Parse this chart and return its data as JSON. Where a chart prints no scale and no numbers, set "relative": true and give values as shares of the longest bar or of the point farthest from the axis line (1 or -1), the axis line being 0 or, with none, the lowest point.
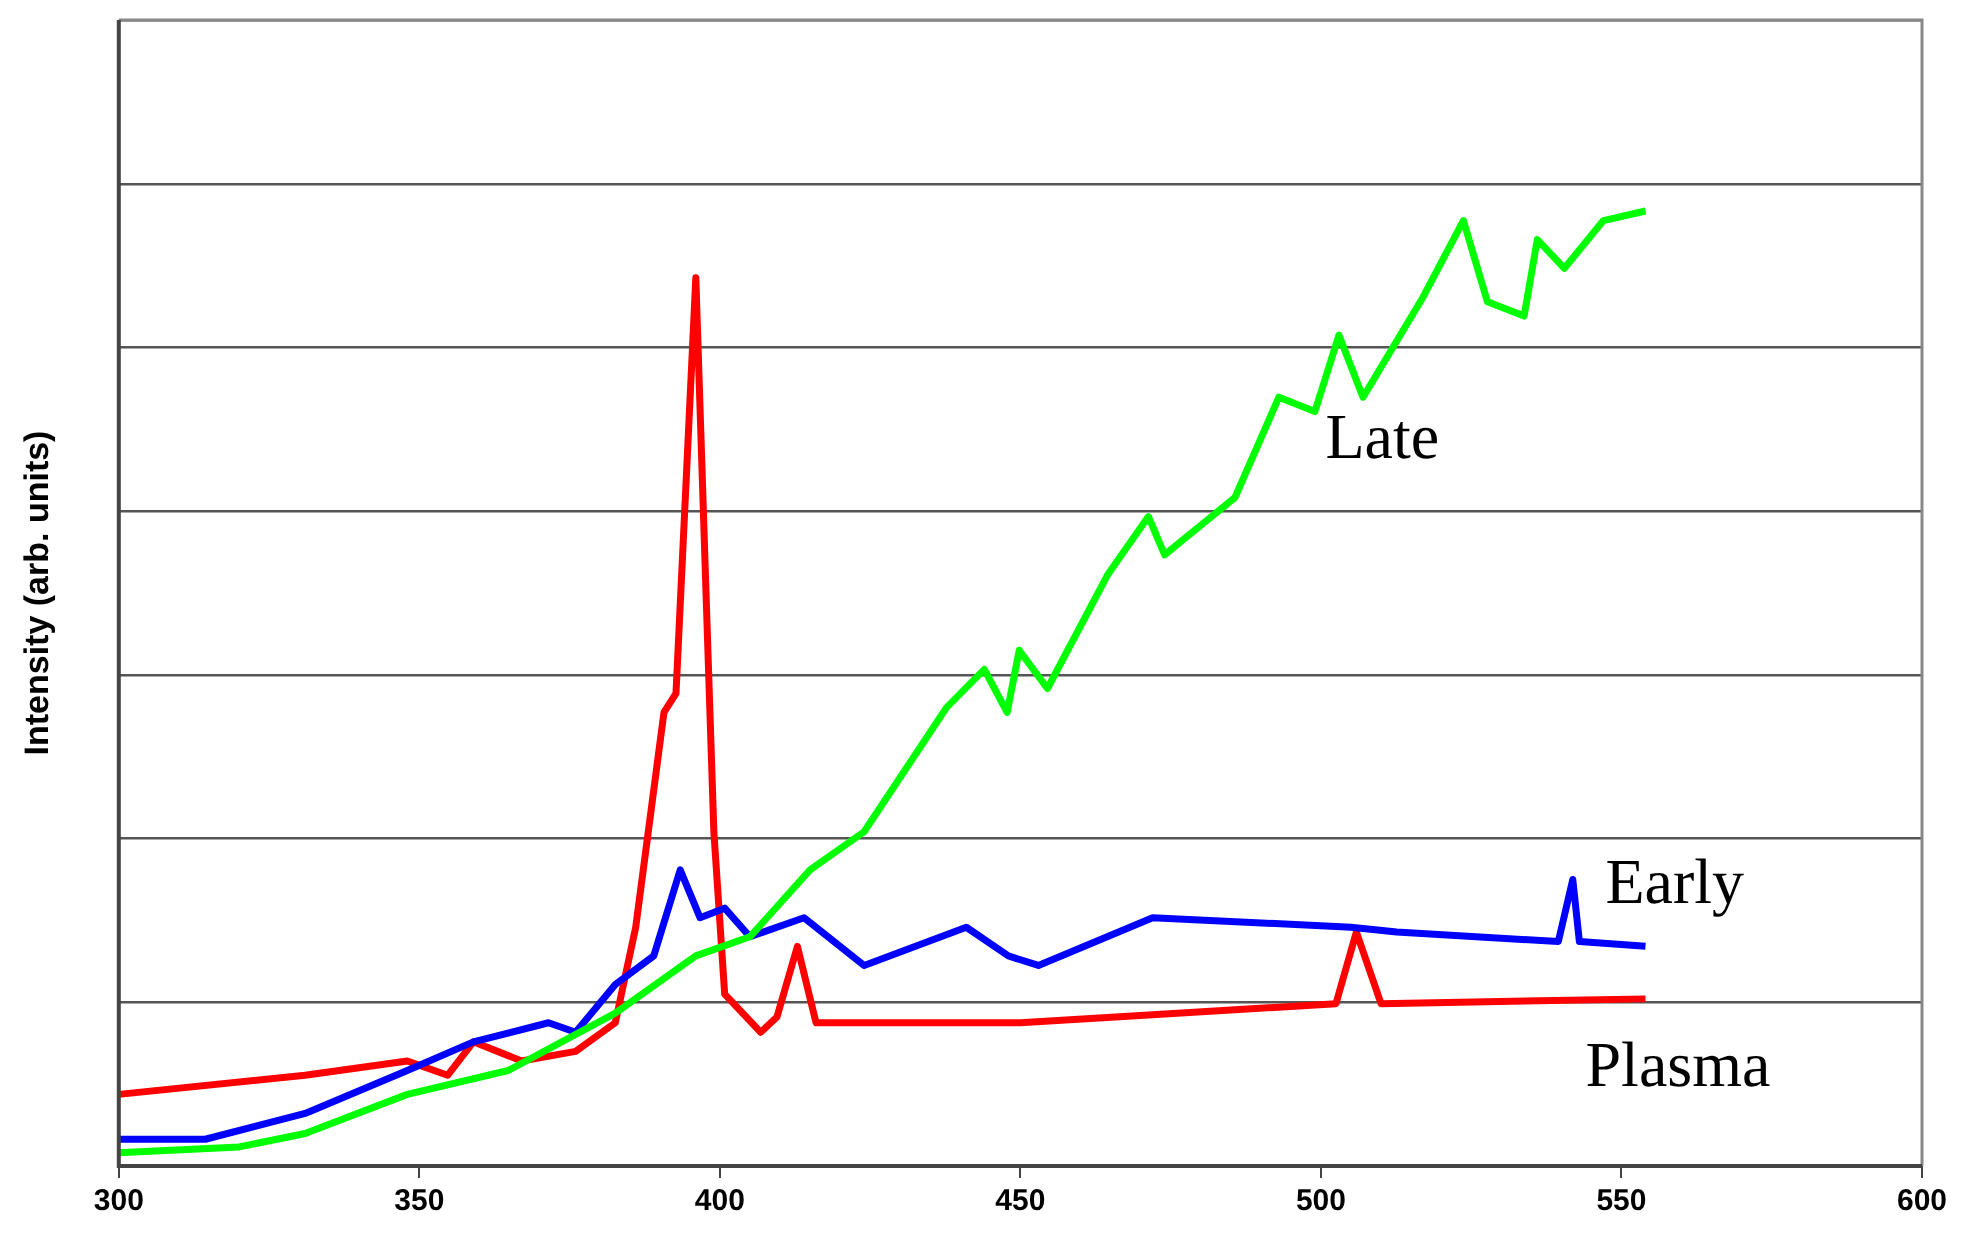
{
  "chart_data": {
    "type": "line",
    "ylabel": "Intensity (arb. units)",
    "relative": true,
    "xlim": [
      300,
      600
    ],
    "xticks": [
      300,
      350,
      400,
      450,
      500,
      550,
      600
    ],
    "grid": "y",
    "legend": false,
    "marker": "none",
    "line_style": "solid",
    "series": [
      {
        "name": "Late",
        "color": "#00ff00",
        "x": [
          300,
          320,
          331,
          348,
          364.8,
          382.6,
          396,
          405,
          415,
          424,
          437.7,
          444,
          447.8,
          449.8,
          454.5,
          464.6,
          471.3,
          474,
          485.7,
          493,
          499,
          503,
          507,
          517,
          523.7,
          527.7,
          533.8,
          536,
          540.5,
          547,
          554
        ],
        "values": [
          0.014,
          0.02,
          0.034,
          0.075,
          0.1,
          0.16,
          0.22,
          0.24,
          0.31,
          0.35,
          0.48,
          0.52,
          0.475,
          0.54,
          0.5,
          0.62,
          0.68,
          0.64,
          0.7,
          0.805,
          0.79,
          0.87,
          0.805,
          0.91,
          0.99,
          0.905,
          0.89,
          0.97,
          0.94,
          0.99,
          1.0
        ]
      },
      {
        "name": "Early",
        "color": "#0000ff",
        "x": [
          300,
          314.4,
          331,
          348,
          359,
          371.5,
          376,
          382.6,
          389,
          393.4,
          396.7,
          400.8,
          405,
          414,
          424,
          441,
          448,
          453,
          472,
          505,
          512.6,
          539.5,
          541.9,
          543,
          554
        ],
        "values": [
          0.028,
          0.028,
          0.055,
          0.1,
          0.13,
          0.15,
          0.14,
          0.19,
          0.22,
          0.31,
          0.26,
          0.27,
          0.24,
          0.26,
          0.21,
          0.25,
          0.22,
          0.21,
          0.26,
          0.25,
          0.245,
          0.235,
          0.3,
          0.235,
          0.23
        ]
      },
      {
        "name": "Plasma",
        "color": "#ff0000",
        "x": [
          300,
          331,
          348,
          354.7,
          359,
          367,
          376,
          382.6,
          386,
          390.7,
          392.7,
          396,
          397.8,
          399,
          400.8,
          406.8,
          409.5,
          412.9,
          416,
          450,
          502.5,
          505.9,
          510,
          554
        ],
        "values": [
          0.075,
          0.095,
          0.11,
          0.095,
          0.13,
          0.11,
          0.12,
          0.15,
          0.25,
          0.475,
          0.495,
          0.93,
          0.58,
          0.35,
          0.18,
          0.14,
          0.156,
          0.23,
          0.15,
          0.15,
          0.17,
          0.245,
          0.17,
          0.175
        ]
      }
    ]
  }
}
